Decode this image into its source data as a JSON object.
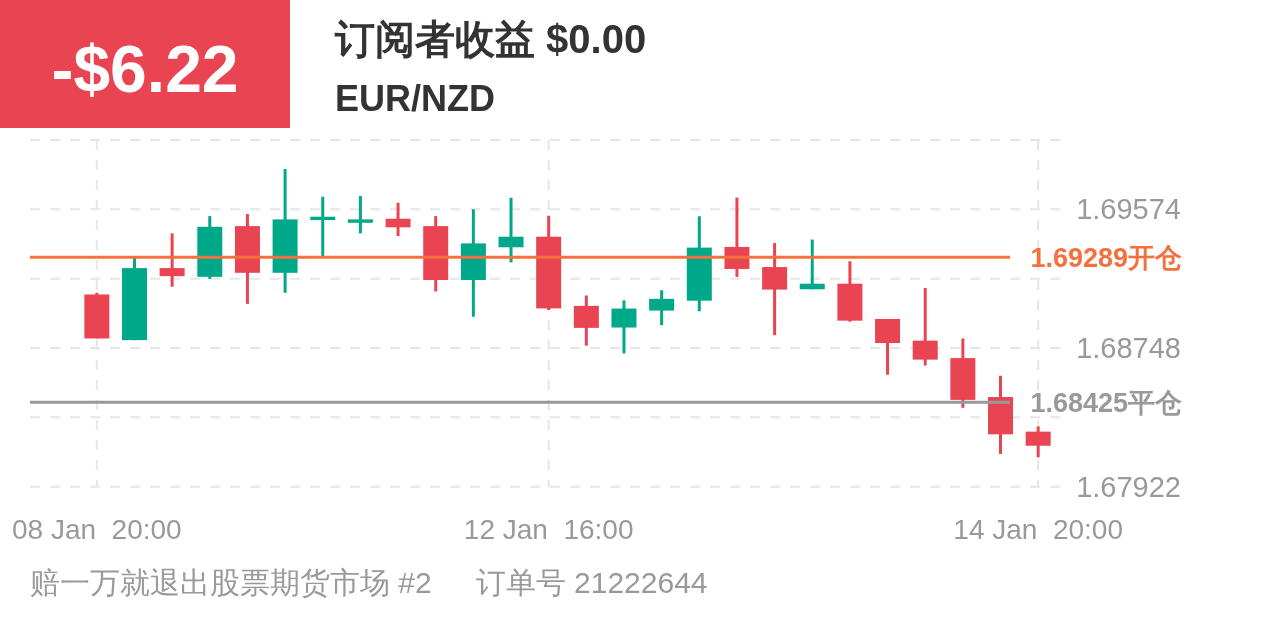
{
  "chart_data": {
    "type": "candlestick",
    "title": "订阅者收益 $0.00",
    "subtitle": "EUR/NZD",
    "annotations": [
      "-$6.22",
      "赔一万就退出股票期货市场 #2",
      "订单号 21222644"
    ],
    "categories": [
      "08 Jan  20:00",
      null,
      null,
      null,
      null,
      null,
      null,
      null,
      null,
      null,
      null,
      null,
      "12 Jan  16:00",
      null,
      null,
      null,
      null,
      null,
      null,
      null,
      null,
      null,
      null,
      null,
      null,
      "14 Jan  20:00"
    ],
    "ohlc": [
      [
        1.69067,
        1.69077,
        1.68805,
        1.68805
      ],
      [
        1.68795,
        1.69288,
        1.68795,
        1.69224
      ],
      [
        1.69224,
        1.69431,
        1.69113,
        1.69176
      ],
      [
        1.69172,
        1.69534,
        1.6916,
        1.6947
      ],
      [
        1.69474,
        1.69546,
        1.69011,
        1.69196
      ],
      [
        1.69196,
        1.69814,
        1.69077,
        1.69514
      ],
      [
        1.6951,
        1.69649,
        1.69296,
        1.6953
      ],
      [
        1.69494,
        1.69653,
        1.69431,
        1.69514
      ],
      [
        1.69518,
        1.69613,
        1.69415,
        1.69467
      ],
      [
        1.69474,
        1.69534,
        1.69085,
        1.69153
      ],
      [
        1.69153,
        1.69574,
        1.68934,
        1.69371
      ],
      [
        1.69348,
        1.69643,
        1.69258,
        1.69411
      ],
      [
        1.69411,
        1.69536,
        1.68974,
        1.68984
      ],
      [
        1.68999,
        1.69061,
        1.68762,
        1.68868
      ],
      [
        1.6887,
        1.69032,
        1.68716,
        1.68983
      ],
      [
        1.68971,
        1.69092,
        1.68884,
        1.69041
      ],
      [
        1.6903,
        1.69533,
        1.68967,
        1.69346
      ],
      [
        1.6935,
        1.69644,
        1.69172,
        1.69219
      ],
      [
        1.6923,
        1.69373,
        1.68825,
        1.69096
      ],
      [
        1.69098,
        1.69394,
        1.69098,
        1.69131
      ],
      [
        1.69131,
        1.69265,
        1.68905,
        1.68911
      ],
      [
        1.68921,
        1.68921,
        1.68589,
        1.68778
      ],
      [
        1.68792,
        1.69106,
        1.68644,
        1.68679
      ],
      [
        1.68688,
        1.68805,
        1.68392,
        1.68439
      ],
      [
        1.68456,
        1.68583,
        1.68117,
        1.68234
      ],
      [
        1.6825,
        1.68281,
        1.68097,
        1.68166
      ]
    ],
    "colors": [
      "#e94452",
      "#00a88a",
      "#e94452",
      "#00a88a",
      "#e94452",
      "#00a88a",
      "#00a88a",
      "#00a88a",
      "#e94452",
      "#e94452",
      "#00a88a",
      "#00a88a",
      "#e94452",
      "#e94452",
      "#00a88a",
      "#00a88a",
      "#00a88a",
      "#e94452",
      "#e94452",
      "#00a88a",
      "#e94452",
      "#e94452",
      "#e94452",
      "#e94452",
      "#e94452",
      "#e94452"
    ],
    "ylim": [
      1.67922,
      1.69987
    ],
    "yticks": [
      {
        "value": 1.69987,
        "label": null
      },
      1.69574,
      {
        "value": 1.69161,
        "label": null
      },
      1.68748,
      {
        "value": 1.68335,
        "label": null
      },
      1.67922
    ],
    "grid": true,
    "ref_lines": [
      {
        "axis": "y",
        "value": 1.69289,
        "label": "1.69289开仓",
        "color": "#f5703c"
      },
      {
        "axis": "y",
        "value": 1.68425,
        "label": "1.68425平仓",
        "color": "#999999"
      }
    ]
  }
}
